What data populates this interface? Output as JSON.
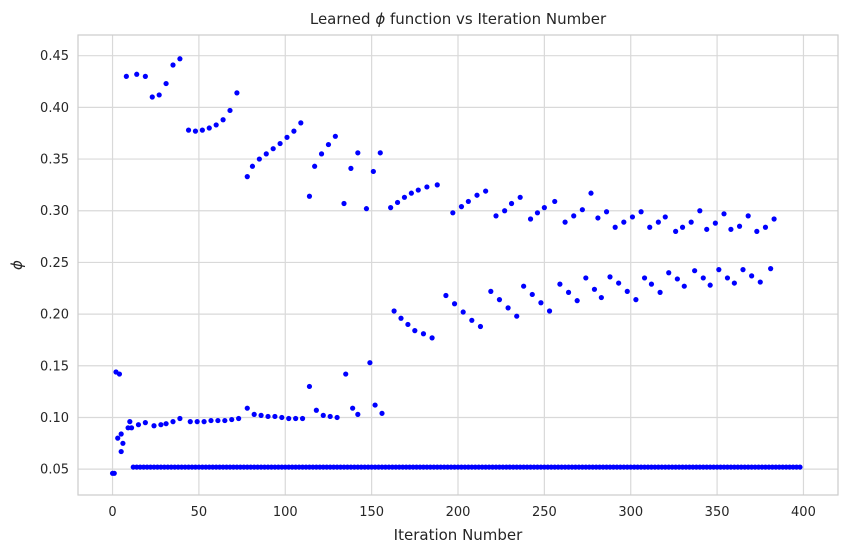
{
  "chart_data": {
    "type": "scatter",
    "title_parts": [
      "Learned ",
      "ϕ",
      " function vs Iteration Number"
    ],
    "xlabel": "Iteration Number",
    "ylabel": "ϕ",
    "xlim": [
      -20,
      420
    ],
    "ylim": [
      0.025,
      0.47
    ],
    "xticks": [
      0,
      50,
      100,
      150,
      200,
      250,
      300,
      350,
      400
    ],
    "yticks": [
      0.05,
      0.1,
      0.15,
      0.2,
      0.25,
      0.3,
      0.35,
      0.4,
      0.45
    ],
    "ytick_labels": [
      "0.05",
      "0.10",
      "0.15",
      "0.20",
      "0.25",
      "0.30",
      "0.35",
      "0.40",
      "0.45"
    ],
    "grid": true,
    "point_color": "#0000ff",
    "series": [
      {
        "baseline_y": 0.052,
        "baseline_x_range": [
          12,
          398
        ],
        "baseline_x_step": 2,
        "points": [
          [
            0,
            0.046
          ],
          [
            1,
            0.046
          ],
          [
            2,
            0.144
          ],
          [
            4,
            0.142
          ],
          [
            3,
            0.08
          ],
          [
            5,
            0.084
          ],
          [
            5,
            0.067
          ],
          [
            6,
            0.075
          ],
          [
            8,
            0.43
          ],
          [
            9,
            0.09
          ],
          [
            10,
            0.096
          ],
          [
            11,
            0.09
          ],
          [
            14,
            0.432
          ],
          [
            15,
            0.093
          ],
          [
            19,
            0.43
          ],
          [
            19,
            0.095
          ],
          [
            23,
            0.41
          ],
          [
            24,
            0.092
          ],
          [
            27,
            0.412
          ],
          [
            28,
            0.093
          ],
          [
            31,
            0.423
          ],
          [
            31,
            0.094
          ],
          [
            35,
            0.441
          ],
          [
            35,
            0.096
          ],
          [
            39,
            0.447
          ],
          [
            39,
            0.099
          ],
          [
            44,
            0.378
          ],
          [
            45,
            0.096
          ],
          [
            48,
            0.377
          ],
          [
            49,
            0.096
          ],
          [
            52,
            0.378
          ],
          [
            53,
            0.096
          ],
          [
            56,
            0.38
          ],
          [
            57,
            0.097
          ],
          [
            60,
            0.383
          ],
          [
            61,
            0.097
          ],
          [
            64,
            0.388
          ],
          [
            65,
            0.097
          ],
          [
            68,
            0.397
          ],
          [
            69,
            0.098
          ],
          [
            72,
            0.414
          ],
          [
            73,
            0.099
          ],
          [
            78,
            0.333
          ],
          [
            78,
            0.109
          ],
          [
            81,
            0.343
          ],
          [
            82,
            0.103
          ],
          [
            85,
            0.35
          ],
          [
            86,
            0.102
          ],
          [
            89,
            0.355
          ],
          [
            90,
            0.101
          ],
          [
            93,
            0.36
          ],
          [
            94,
            0.101
          ],
          [
            97,
            0.365
          ],
          [
            98,
            0.1
          ],
          [
            101,
            0.371
          ],
          [
            102,
            0.099
          ],
          [
            105,
            0.377
          ],
          [
            106,
            0.099
          ],
          [
            109,
            0.385
          ],
          [
            110,
            0.099
          ],
          [
            114,
            0.314
          ],
          [
            114,
            0.13
          ],
          [
            117,
            0.343
          ],
          [
            118,
            0.107
          ],
          [
            121,
            0.355
          ],
          [
            122,
            0.102
          ],
          [
            125,
            0.364
          ],
          [
            126,
            0.101
          ],
          [
            129,
            0.372
          ],
          [
            130,
            0.1
          ],
          [
            134,
            0.307
          ],
          [
            135,
            0.142
          ],
          [
            138,
            0.341
          ],
          [
            139,
            0.109
          ],
          [
            142,
            0.356
          ],
          [
            142,
            0.103
          ],
          [
            147,
            0.302
          ],
          [
            149,
            0.153
          ],
          [
            151,
            0.338
          ],
          [
            152,
            0.112
          ],
          [
            155,
            0.356
          ],
          [
            156,
            0.104
          ],
          [
            161,
            0.303
          ],
          [
            163,
            0.203
          ],
          [
            165,
            0.308
          ],
          [
            167,
            0.196
          ],
          [
            169,
            0.313
          ],
          [
            171,
            0.19
          ],
          [
            173,
            0.317
          ],
          [
            175,
            0.184
          ],
          [
            177,
            0.32
          ],
          [
            180,
            0.181
          ],
          [
            182,
            0.323
          ],
          [
            185,
            0.177
          ],
          [
            188,
            0.325
          ],
          [
            193,
            0.218
          ],
          [
            197,
            0.298
          ],
          [
            198,
            0.21
          ],
          [
            202,
            0.304
          ],
          [
            203,
            0.202
          ],
          [
            206,
            0.309
          ],
          [
            208,
            0.194
          ],
          [
            211,
            0.315
          ],
          [
            213,
            0.188
          ],
          [
            216,
            0.319
          ],
          [
            219,
            0.222
          ],
          [
            222,
            0.295
          ],
          [
            224,
            0.214
          ],
          [
            227,
            0.3
          ],
          [
            229,
            0.206
          ],
          [
            231,
            0.307
          ],
          [
            234,
            0.198
          ],
          [
            236,
            0.313
          ],
          [
            238,
            0.227
          ],
          [
            242,
            0.292
          ],
          [
            243,
            0.219
          ],
          [
            246,
            0.298
          ],
          [
            248,
            0.211
          ],
          [
            250,
            0.303
          ],
          [
            253,
            0.203
          ],
          [
            256,
            0.309
          ],
          [
            259,
            0.229
          ],
          [
            262,
            0.289
          ],
          [
            264,
            0.221
          ],
          [
            267,
            0.295
          ],
          [
            269,
            0.213
          ],
          [
            272,
            0.301
          ],
          [
            274,
            0.235
          ],
          [
            277,
            0.317
          ],
          [
            279,
            0.224
          ],
          [
            281,
            0.293
          ],
          [
            283,
            0.216
          ],
          [
            286,
            0.299
          ],
          [
            288,
            0.236
          ],
          [
            291,
            0.284
          ],
          [
            293,
            0.23
          ],
          [
            296,
            0.289
          ],
          [
            298,
            0.222
          ],
          [
            301,
            0.294
          ],
          [
            303,
            0.214
          ],
          [
            306,
            0.299
          ],
          [
            308,
            0.235
          ],
          [
            311,
            0.284
          ],
          [
            312,
            0.229
          ],
          [
            316,
            0.289
          ],
          [
            317,
            0.221
          ],
          [
            320,
            0.294
          ],
          [
            322,
            0.24
          ],
          [
            326,
            0.28
          ],
          [
            327,
            0.234
          ],
          [
            330,
            0.284
          ],
          [
            331,
            0.227
          ],
          [
            335,
            0.289
          ],
          [
            337,
            0.242
          ],
          [
            340,
            0.3
          ],
          [
            342,
            0.235
          ],
          [
            344,
            0.282
          ],
          [
            346,
            0.228
          ],
          [
            349,
            0.288
          ],
          [
            351,
            0.243
          ],
          [
            354,
            0.297
          ],
          [
            356,
            0.235
          ],
          [
            358,
            0.282
          ],
          [
            360,
            0.23
          ],
          [
            363,
            0.285
          ],
          [
            365,
            0.243
          ],
          [
            368,
            0.295
          ],
          [
            370,
            0.237
          ],
          [
            373,
            0.28
          ],
          [
            375,
            0.231
          ],
          [
            378,
            0.284
          ],
          [
            381,
            0.244
          ],
          [
            383,
            0.292
          ]
        ]
      }
    ]
  }
}
